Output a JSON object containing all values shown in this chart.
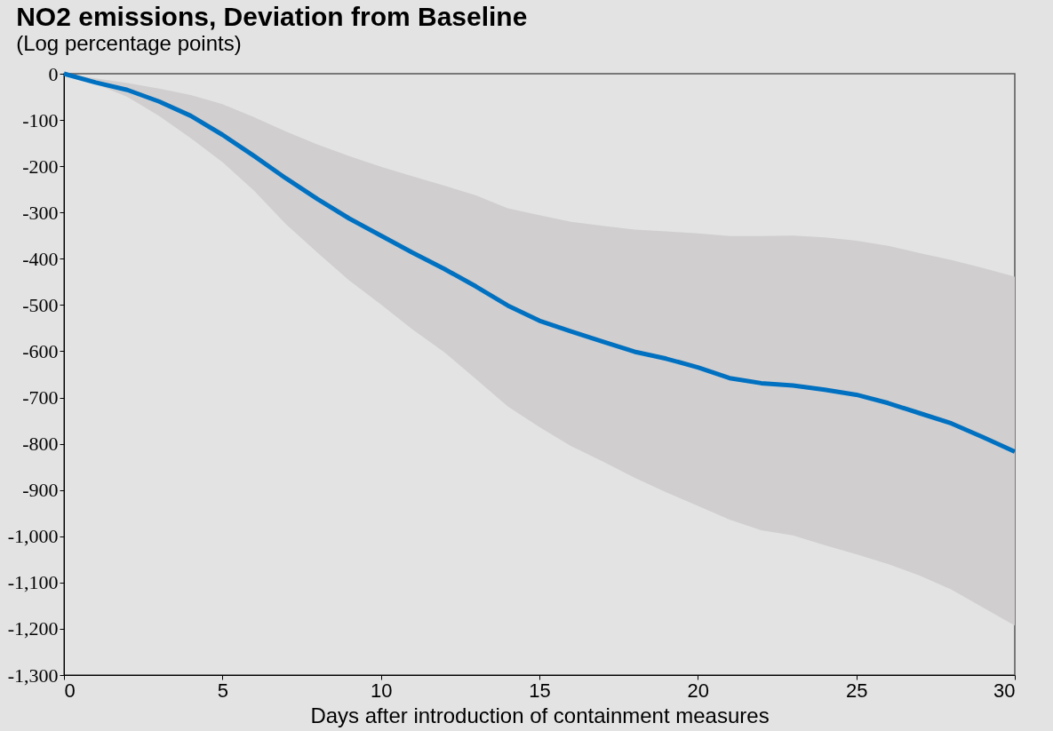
{
  "chart_data": {
    "type": "line",
    "title": "NO2 emissions, Deviation from Baseline",
    "subtitle": "(Log percentage points)",
    "xlabel": "Days after introduction of containment measures",
    "x": [
      0,
      1,
      2,
      3,
      4,
      5,
      6,
      7,
      8,
      9,
      10,
      11,
      12,
      13,
      14,
      15,
      16,
      17,
      18,
      19,
      20,
      21,
      22,
      23,
      24,
      25,
      26,
      27,
      28,
      29,
      30
    ],
    "series": [
      {
        "color": "#0070c0",
        "values": [
          0,
          -19,
          -35,
          -60,
          -91,
          -132,
          -178,
          -226,
          -271,
          -313,
          -350,
          -387,
          -422,
          -460,
          -501,
          -534,
          -557,
          -579,
          -601,
          -616,
          -635,
          -658,
          -669,
          -674,
          -683,
          -694,
          -712,
          -734,
          -756,
          -786,
          -817
        ],
        "upper": [
          0,
          -10,
          -20,
          -32,
          -46,
          -66,
          -94,
          -125,
          -153,
          -178,
          -201,
          -222,
          -242,
          -263,
          -291,
          -306,
          -320,
          -329,
          -337,
          -341,
          -345,
          -351,
          -351,
          -350,
          -354,
          -361,
          -372,
          -388,
          -403,
          -420,
          -439
        ],
        "lower": [
          0,
          -22,
          -50,
          -91,
          -139,
          -191,
          -253,
          -325,
          -387,
          -447,
          -499,
          -553,
          -602,
          -660,
          -719,
          -764,
          -805,
          -838,
          -873,
          -905,
          -934,
          -964,
          -987,
          -998,
          -1019,
          -1039,
          -1060,
          -1085,
          -1115,
          -1154,
          -1193
        ]
      }
    ],
    "xlim": [
      0,
      30
    ],
    "xticks": [
      0,
      5,
      10,
      15,
      20,
      25,
      30
    ],
    "ylim": [
      -1300,
      0
    ],
    "yticks": [
      0,
      -100,
      -200,
      -300,
      -400,
      -500,
      -600,
      -700,
      -800,
      -900,
      {
        "value": -1000,
        "label": "-1,000"
      },
      {
        "value": -1100,
        "label": "-1,100"
      },
      {
        "value": -1200,
        "label": "-1,200"
      },
      {
        "value": -1300,
        "label": "-1,300"
      }
    ],
    "marker": "none",
    "line_style": "solid"
  }
}
